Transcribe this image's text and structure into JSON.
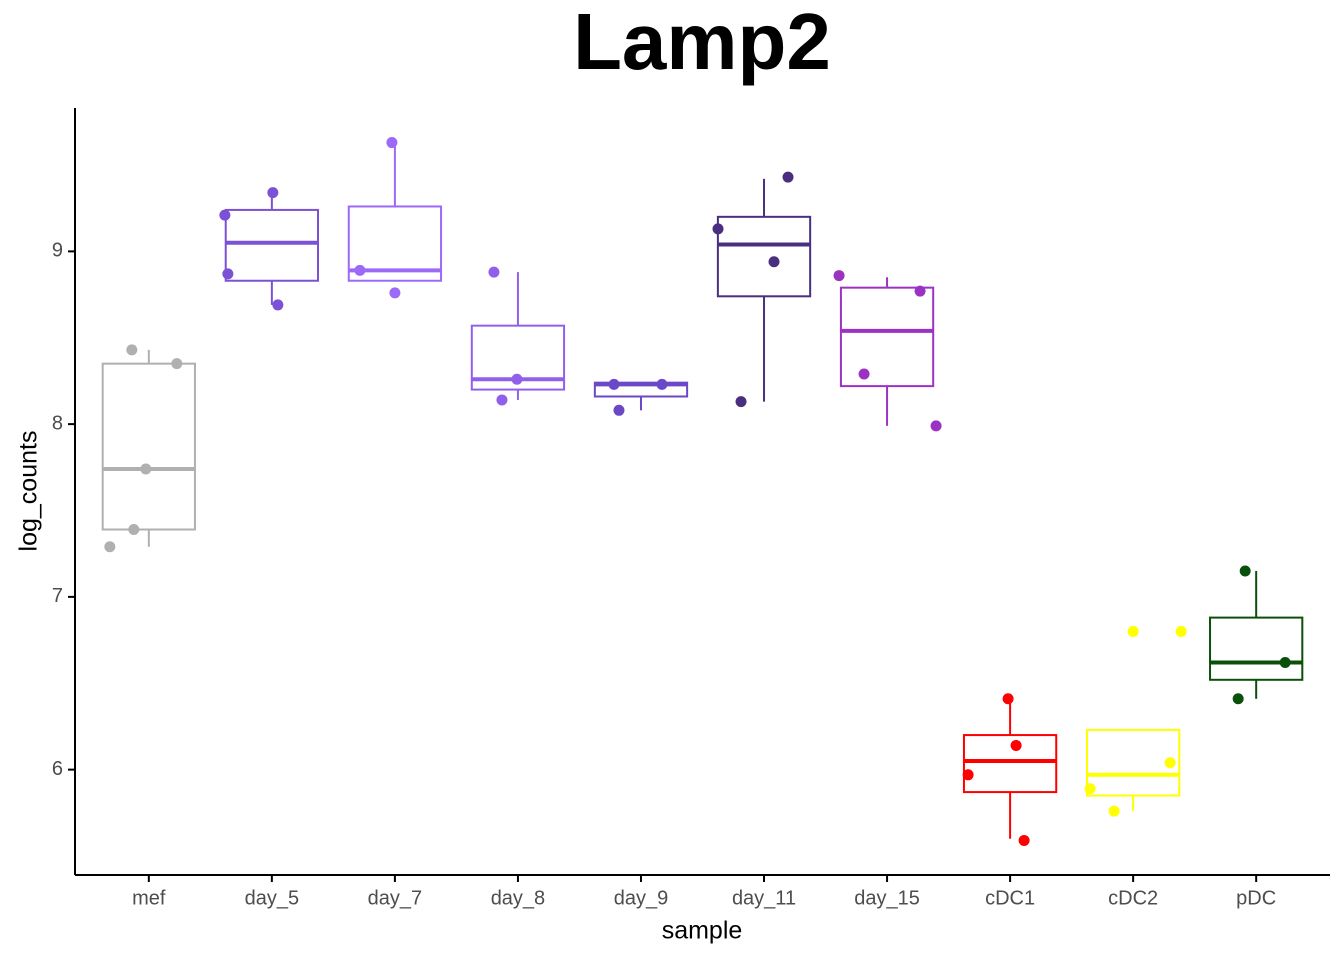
{
  "chart_data": {
    "type": "box",
    "title": "Lamp2",
    "x_label": "sample",
    "y_label": "log_counts",
    "categories": [
      "mef",
      "day_5",
      "day_7",
      "day_8",
      "day_9",
      "day_11",
      "day_15",
      "cDC1",
      "cDC2",
      "pDC"
    ],
    "colors": [
      "#b0b0b0",
      "#7b52d6",
      "#9c6af7",
      "#9160ea",
      "#6a48c7",
      "#4a2f80",
      "#9b32c4",
      "#ff0000",
      "#ffff00",
      "#0a4f0a"
    ],
    "boxes": [
      {
        "whisker_low": 7.29,
        "q1": 7.39,
        "median": 7.74,
        "q3": 8.35,
        "whisker_high": 8.43,
        "points": [
          8.43,
          8.35,
          7.74,
          7.39,
          7.29
        ]
      },
      {
        "whisker_low": 8.69,
        "q1": 8.83,
        "median": 9.05,
        "q3": 9.24,
        "whisker_high": 9.32,
        "points": [
          9.21,
          9.34,
          8.87,
          8.69
        ]
      },
      {
        "whisker_low": 8.83,
        "q1": 8.83,
        "median": 8.89,
        "q3": 9.26,
        "whisker_high": 9.63,
        "points": [
          9.63,
          8.89,
          8.76
        ]
      },
      {
        "whisker_low": 8.14,
        "q1": 8.2,
        "median": 8.26,
        "q3": 8.57,
        "whisker_high": 8.88,
        "points": [
          8.88,
          8.26,
          8.14
        ]
      },
      {
        "whisker_low": 8.08,
        "q1": 8.16,
        "median": 8.23,
        "q3": 8.24,
        "whisker_high": 8.24,
        "points": [
          8.23,
          8.23,
          8.08
        ]
      },
      {
        "whisker_low": 8.13,
        "q1": 8.74,
        "median": 9.04,
        "q3": 9.2,
        "whisker_high": 9.42,
        "points": [
          9.43,
          9.13,
          8.94,
          8.13
        ]
      },
      {
        "whisker_low": 7.99,
        "q1": 8.22,
        "median": 8.54,
        "q3": 8.79,
        "whisker_high": 8.85,
        "points": [
          8.86,
          8.77,
          8.29,
          7.99
        ]
      },
      {
        "whisker_low": 5.6,
        "q1": 5.87,
        "median": 6.05,
        "q3": 6.2,
        "whisker_high": 6.41,
        "points": [
          6.41,
          6.14,
          5.97,
          5.59
        ]
      },
      {
        "whisker_low": 5.76,
        "q1": 5.85,
        "median": 5.97,
        "q3": 6.23,
        "whisker_high": 6.23,
        "points": [
          6.8,
          6.8,
          6.04,
          5.89,
          5.76
        ]
      },
      {
        "whisker_low": 6.41,
        "q1": 6.52,
        "median": 6.62,
        "q3": 6.88,
        "whisker_high": 7.15,
        "points": [
          7.15,
          6.62,
          6.41
        ]
      }
    ],
    "ylim": [
      5.39,
      9.83
    ],
    "yticks": [
      6,
      7,
      8,
      9
    ],
    "grid": false
  }
}
